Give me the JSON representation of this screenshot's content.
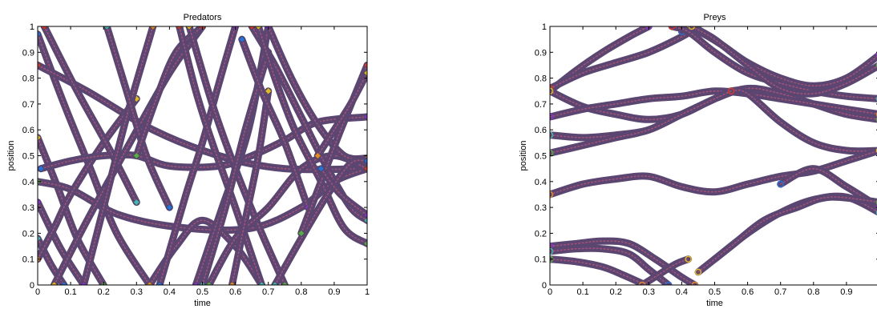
{
  "colors": {
    "trajectory": "#5a4670",
    "trajectory_stripe": "#b0547a",
    "marker_palette": [
      "#2a6fd6",
      "#d33b2c",
      "#e0b92a",
      "#8a35c9",
      "#49b3b3",
      "#5aa84a",
      "#e08a2a"
    ]
  },
  "chart_data": [
    {
      "type": "scatter",
      "title": "Predators",
      "xlabel": "time",
      "ylabel": "position",
      "xlim": [
        0,
        1
      ],
      "ylim": [
        0,
        1
      ],
      "xticks": [
        0,
        0.1,
        0.2,
        0.3,
        0.4,
        0.5,
        0.6,
        0.7,
        0.8,
        0.9,
        1
      ],
      "yticks": [
        0,
        0.1,
        0.2,
        0.3,
        0.4,
        0.5,
        0.6,
        0.7,
        0.8,
        0.9,
        1
      ],
      "xticklabels": [
        "0",
        "0.1",
        "0.2",
        "0.3",
        "0.4",
        "0.5",
        "0.6",
        "0.7",
        "0.8",
        "0.9",
        "1"
      ],
      "yticklabels": [
        "0",
        "0.1",
        "0.2",
        "0.3",
        "0.4",
        "0.5",
        "0.6",
        "0.7",
        "0.8",
        "0.9",
        "1"
      ],
      "grid": false,
      "marker": "diamond",
      "series": [
        {
          "x": [
            0,
            0.08,
            0.16,
            0.24,
            0.34
          ],
          "y": [
            0.97,
            0.7,
            0.45,
            0.2,
            0
          ]
        },
        {
          "x": [
            0,
            0.15,
            0.35,
            0.55,
            0.75,
            1
          ],
          "y": [
            0.85,
            0.75,
            0.6,
            0.5,
            0.45,
            0.45
          ]
        },
        {
          "x": [
            0,
            0.06,
            0.12,
            0.2
          ],
          "y": [
            0.57,
            0.38,
            0.18,
            0
          ]
        },
        {
          "x": [
            0,
            0.07,
            0.14
          ],
          "y": [
            0.32,
            0.14,
            0
          ]
        },
        {
          "x": [
            0,
            0.04,
            0.08
          ],
          "y": [
            0.18,
            0.08,
            0
          ]
        },
        {
          "x": [
            0,
            0.1,
            0.25,
            0.45,
            0.65,
            0.8,
            0.9,
            1
          ],
          "y": [
            0.4,
            0.37,
            0.27,
            0.22,
            0.22,
            0.3,
            0.4,
            0.45
          ]
        },
        {
          "x": [
            0,
            0.05,
            0.1,
            0.2,
            0.3
          ],
          "y": [
            0.1,
            0.22,
            0.35,
            0.55,
            0.72
          ]
        },
        {
          "x": [
            0.01,
            0.1,
            0.2,
            0.3,
            0.4,
            0.55,
            0.65,
            0.75,
            0.85,
            1
          ],
          "y": [
            0.45,
            0.48,
            0.5,
            0.5,
            0.46,
            0.46,
            0.5,
            0.56,
            0.63,
            0.65
          ]
        },
        {
          "x": [
            0.02,
            0.12,
            0.22,
            0.3
          ],
          "y": [
            1,
            0.75,
            0.52,
            0.32
          ]
        },
        {
          "x": [
            0.05,
            0.15,
            0.28,
            0.4,
            0.5
          ],
          "y": [
            0,
            0.25,
            0.55,
            0.82,
            1
          ]
        },
        {
          "x": [
            0.14,
            0.2,
            0.27,
            0.35
          ],
          "y": [
            0,
            0.3,
            0.65,
            1
          ]
        },
        {
          "x": [
            0.21,
            0.27,
            0.33,
            0.4
          ],
          "y": [
            1,
            0.75,
            0.5,
            0.3
          ]
        },
        {
          "x": [
            0.3,
            0.36,
            0.42,
            0.5
          ],
          "y": [
            0.5,
            0.72,
            0.9,
            1
          ]
        },
        {
          "x": [
            0.34,
            0.42,
            0.5,
            0.6,
            0.68
          ],
          "y": [
            0,
            0.15,
            0.25,
            0.15,
            0
          ]
        },
        {
          "x": [
            0.37,
            0.45,
            0.5,
            0.55,
            0.6
          ],
          "y": [
            0,
            0.35,
            0.55,
            0.78,
            1
          ]
        },
        {
          "x": [
            0.43,
            0.48,
            0.53,
            0.6,
            0.68
          ],
          "y": [
            1,
            0.75,
            0.55,
            0.3,
            0
          ]
        },
        {
          "x": [
            0.46,
            0.53,
            0.6,
            0.68,
            0.75
          ],
          "y": [
            1,
            0.7,
            0.45,
            0.2,
            0
          ]
        },
        {
          "x": [
            0.48,
            0.56,
            0.64,
            0.7
          ],
          "y": [
            0,
            0.3,
            0.6,
            1
          ]
        },
        {
          "x": [
            0.5,
            0.57,
            0.63,
            0.7
          ],
          "y": [
            0,
            0.3,
            0.6,
            0.9
          ]
        },
        {
          "x": [
            0.52,
            0.6,
            0.7,
            0.8,
            0.9,
            1
          ],
          "y": [
            0,
            0.18,
            0.3,
            0.45,
            0.5,
            0.45
          ]
        },
        {
          "x": [
            0.59,
            0.63,
            0.67,
            0.7
          ],
          "y": [
            0,
            0.25,
            0.5,
            0.75
          ]
        },
        {
          "x": [
            0.62,
            0.68,
            0.75,
            0.82
          ],
          "y": [
            0.95,
            0.75,
            0.55,
            0.3
          ]
        },
        {
          "x": [
            0.65,
            0.72,
            0.8,
            0.88,
            0.95,
            1
          ],
          "y": [
            1,
            0.85,
            0.65,
            0.45,
            0.3,
            0.25
          ]
        },
        {
          "x": [
            0.67,
            0.72,
            0.78,
            0.86,
            0.93,
            1
          ],
          "y": [
            1,
            0.8,
            0.6,
            0.4,
            0.22,
            0.16
          ]
        },
        {
          "x": [
            0.7,
            0.77,
            0.85,
            0.93,
            1
          ],
          "y": [
            1,
            0.8,
            0.62,
            0.5,
            0.49
          ]
        },
        {
          "x": [
            0.72,
            0.8,
            0.88,
            0.95,
            1
          ],
          "y": [
            0,
            0.18,
            0.35,
            0.47,
            0.48
          ]
        },
        {
          "x": [
            0.8,
            0.86,
            0.92,
            1
          ],
          "y": [
            0.2,
            0.4,
            0.6,
            0.85
          ]
        },
        {
          "x": [
            0.85,
            0.9,
            0.95,
            1
          ],
          "y": [
            0.5,
            0.6,
            0.7,
            0.82
          ]
        },
        {
          "x": [
            0.86,
            0.92,
            1
          ],
          "y": [
            0.45,
            0.35,
            0.27
          ]
        }
      ]
    },
    {
      "type": "scatter",
      "title": "Preys",
      "xlabel": "time",
      "ylabel": "position",
      "xlim": [
        0,
        1
      ],
      "ylim": [
        0,
        1
      ],
      "xticks": [
        0,
        0.1,
        0.2,
        0.3,
        0.4,
        0.5,
        0.6,
        0.7,
        0.8,
        0.9
      ],
      "yticks": [
        0,
        0.1,
        0.2,
        0.3,
        0.4,
        0.5,
        0.6,
        0.7,
        0.8,
        0.9,
        1
      ],
      "xticklabels": [
        "0",
        "0.1",
        "0.2",
        "0.3",
        "0.4",
        "0.5",
        "0.6",
        "0.7",
        "0.8",
        "0.9"
      ],
      "yticklabels": [
        "0",
        "0.1",
        "0.2",
        "0.3",
        "0.4",
        "0.5",
        "0.6",
        "0.7",
        "0.8",
        "0.9",
        "1"
      ],
      "grid": false,
      "marker": "circle",
      "series": [
        {
          "x": [
            0,
            0.08,
            0.16,
            0.24,
            0.3
          ],
          "y": [
            0.75,
            0.83,
            0.9,
            0.96,
            1
          ]
        },
        {
          "x": [
            0,
            0.1,
            0.2,
            0.3,
            0.4,
            0.45
          ],
          "y": [
            0.76,
            0.82,
            0.86,
            0.9,
            0.96,
            1
          ]
        },
        {
          "x": [
            0,
            0.1,
            0.2,
            0.3,
            0.4,
            0.5,
            0.6,
            0.7,
            0.8,
            0.9,
            1
          ],
          "y": [
            0.75,
            0.69,
            0.66,
            0.64,
            0.66,
            0.72,
            0.76,
            0.74,
            0.7,
            0.66,
            0.64
          ]
        },
        {
          "x": [
            0,
            0.1,
            0.2,
            0.3,
            0.4,
            0.5,
            0.6,
            0.7,
            0.8,
            0.9,
            1
          ],
          "y": [
            0.65,
            0.68,
            0.7,
            0.72,
            0.73,
            0.75,
            0.74,
            0.72,
            0.7,
            0.68,
            0.66
          ]
        },
        {
          "x": [
            0,
            0.1,
            0.2,
            0.3,
            0.4,
            0.5,
            0.55,
            0.6,
            0.7,
            0.8,
            0.9,
            1
          ],
          "y": [
            0.58,
            0.57,
            0.58,
            0.6,
            0.66,
            0.72,
            0.75,
            0.74,
            0.63,
            0.55,
            0.52,
            0.52
          ]
        },
        {
          "x": [
            0,
            0.1,
            0.2,
            0.3,
            0.4,
            0.5,
            0.55
          ],
          "y": [
            0.51,
            0.54,
            0.57,
            0.6,
            0.66,
            0.72,
            0.75
          ]
        },
        {
          "x": [
            0,
            0.1,
            0.2,
            0.3,
            0.4,
            0.5,
            0.6,
            0.7,
            0.8,
            0.9,
            1
          ],
          "y": [
            0.35,
            0.39,
            0.41,
            0.42,
            0.38,
            0.36,
            0.39,
            0.42,
            0.44,
            0.48,
            0.52
          ]
        },
        {
          "x": [
            0.7,
            0.8,
            0.9,
            1
          ],
          "y": [
            0.39,
            0.45,
            0.38,
            0.3
          ]
        },
        {
          "x": [
            0.5,
            0.6,
            0.7,
            0.8,
            0.9,
            1
          ],
          "y": [
            0.1,
            0.2,
            0.28,
            0.33,
            0.34,
            0.28
          ]
        },
        {
          "x": [
            0.45,
            0.55,
            0.65,
            0.75,
            0.85,
            1
          ],
          "y": [
            0.05,
            0.15,
            0.25,
            0.3,
            0.34,
            0.32
          ]
        },
        {
          "x": [
            0,
            0.08,
            0.16,
            0.24,
            0.32,
            0.4,
            0.44
          ],
          "y": [
            0.15,
            0.16,
            0.17,
            0.16,
            0.1,
            0.03,
            0
          ]
        },
        {
          "x": [
            0,
            0.08,
            0.16,
            0.24,
            0.3,
            0.36
          ],
          "y": [
            0.13,
            0.14,
            0.14,
            0.12,
            0.06,
            0
          ]
        },
        {
          "x": [
            0,
            0.08,
            0.16,
            0.22,
            0.29
          ],
          "y": [
            0.1,
            0.09,
            0.07,
            0.04,
            0
          ]
        },
        {
          "x": [
            0.28,
            0.33,
            0.38,
            0.42
          ],
          "y": [
            0,
            0.04,
            0.08,
            0.1
          ]
        },
        {
          "x": [
            0.4,
            0.45,
            0.52,
            0.6,
            0.7,
            0.8,
            0.9,
            1
          ],
          "y": [
            0.98,
            0.98,
            0.93,
            0.86,
            0.8,
            0.77,
            0.8,
            0.89
          ]
        },
        {
          "x": [
            0.37,
            0.42,
            0.5,
            0.6,
            0.7,
            0.8,
            0.9,
            1
          ],
          "y": [
            1,
            0.98,
            0.9,
            0.82,
            0.78,
            0.75,
            0.73,
            0.72
          ]
        },
        {
          "x": [
            0.43,
            0.5,
            0.6,
            0.7,
            0.8,
            0.9,
            1
          ],
          "y": [
            1,
            0.95,
            0.85,
            0.76,
            0.74,
            0.78,
            0.85
          ]
        }
      ]
    }
  ]
}
